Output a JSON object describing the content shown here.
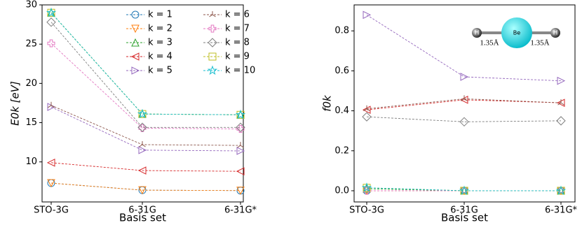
{
  "chart_data": [
    {
      "type": "line",
      "ylabel": "E0k [eV]",
      "xlabel": "Basis set",
      "categories": [
        "STO-3G",
        "6-31G",
        "6-31G*"
      ],
      "ylim": [
        4.9,
        30
      ],
      "yticks": [
        10,
        15,
        20,
        25,
        30
      ],
      "legend": "upper right",
      "series": [
        {
          "name": "k = 1",
          "color": "#1f77b4",
          "marker": "o",
          "values": [
            7.3,
            6.4,
            6.35
          ]
        },
        {
          "name": "k = 2",
          "color": "#ff7f0e",
          "marker": "v",
          "values": [
            7.3,
            6.4,
            6.35
          ]
        },
        {
          "name": "k = 3",
          "color": "#2ca02c",
          "marker": "^",
          "values": [
            29.0,
            16.1,
            16.0
          ]
        },
        {
          "name": "k = 4",
          "color": "#d62728",
          "marker": "<",
          "values": [
            9.9,
            8.9,
            8.8
          ]
        },
        {
          "name": "k = 5",
          "color": "#9467bd",
          "marker": ">",
          "values": [
            17.0,
            11.5,
            11.4
          ]
        },
        {
          "name": "k = 6",
          "color": "#8c564b",
          "marker": "tri",
          "values": [
            17.2,
            12.2,
            12.1
          ]
        },
        {
          "name": "k = 7",
          "color": "#e377c2",
          "marker": "P",
          "values": [
            25.1,
            14.3,
            14.2
          ]
        },
        {
          "name": "k = 8",
          "color": "#7f7f7f",
          "marker": "D",
          "values": [
            27.8,
            14.4,
            14.4
          ]
        },
        {
          "name": "k = 9",
          "color": "#bcbd22",
          "marker": "s",
          "values": [
            29.0,
            16.1,
            16.0
          ]
        },
        {
          "name": "k = 10",
          "color": "#17becf",
          "marker": "*",
          "values": [
            29.0,
            16.1,
            16.0
          ]
        }
      ]
    },
    {
      "type": "line",
      "ylabel": "f0k",
      "xlabel": "Basis set",
      "categories": [
        "STO-3G",
        "6-31G",
        "6-31G*"
      ],
      "ylim": [
        -0.056,
        0.93
      ],
      "yticks": [
        {
          "value": 0,
          "label": "0.0"
        },
        0.2,
        0.4,
        0.6,
        0.8
      ],
      "inset": {
        "atoms": [
          "H",
          "Be",
          "H"
        ],
        "bond_labels": [
          "1.35Å",
          "1.35Å"
        ]
      },
      "series": [
        {
          "name": "k = 1",
          "color": "#1f77b4",
          "marker": "o",
          "values": [
            0.0,
            0.0,
            0.0
          ]
        },
        {
          "name": "k = 2",
          "color": "#ff7f0e",
          "marker": "v",
          "values": [
            0.0,
            0.0,
            0.0
          ]
        },
        {
          "name": "k = 3",
          "color": "#2ca02c",
          "marker": "^",
          "values": [
            0.01,
            0.0,
            0.0
          ]
        },
        {
          "name": "k = 4",
          "color": "#d62728",
          "marker": "<",
          "values": [
            0.405,
            0.455,
            0.44
          ]
        },
        {
          "name": "k = 5",
          "color": "#9467bd",
          "marker": ">",
          "values": [
            0.88,
            0.57,
            0.55
          ]
        },
        {
          "name": "k = 6",
          "color": "#8c564b",
          "marker": "tri",
          "values": [
            0.41,
            0.46,
            0.44
          ]
        },
        {
          "name": "k = 7",
          "color": "#e377c2",
          "marker": "P",
          "values": [
            0.0,
            0.0,
            0.0
          ]
        },
        {
          "name": "k = 8",
          "color": "#7f7f7f",
          "marker": "D",
          "values": [
            0.37,
            0.345,
            0.35
          ]
        },
        {
          "name": "k = 9",
          "color": "#bcbd22",
          "marker": "s",
          "values": [
            0.015,
            0.0,
            0.0
          ]
        },
        {
          "name": "k = 10",
          "color": "#17becf",
          "marker": "*",
          "values": [
            0.015,
            0.0,
            0.0
          ]
        }
      ]
    }
  ]
}
